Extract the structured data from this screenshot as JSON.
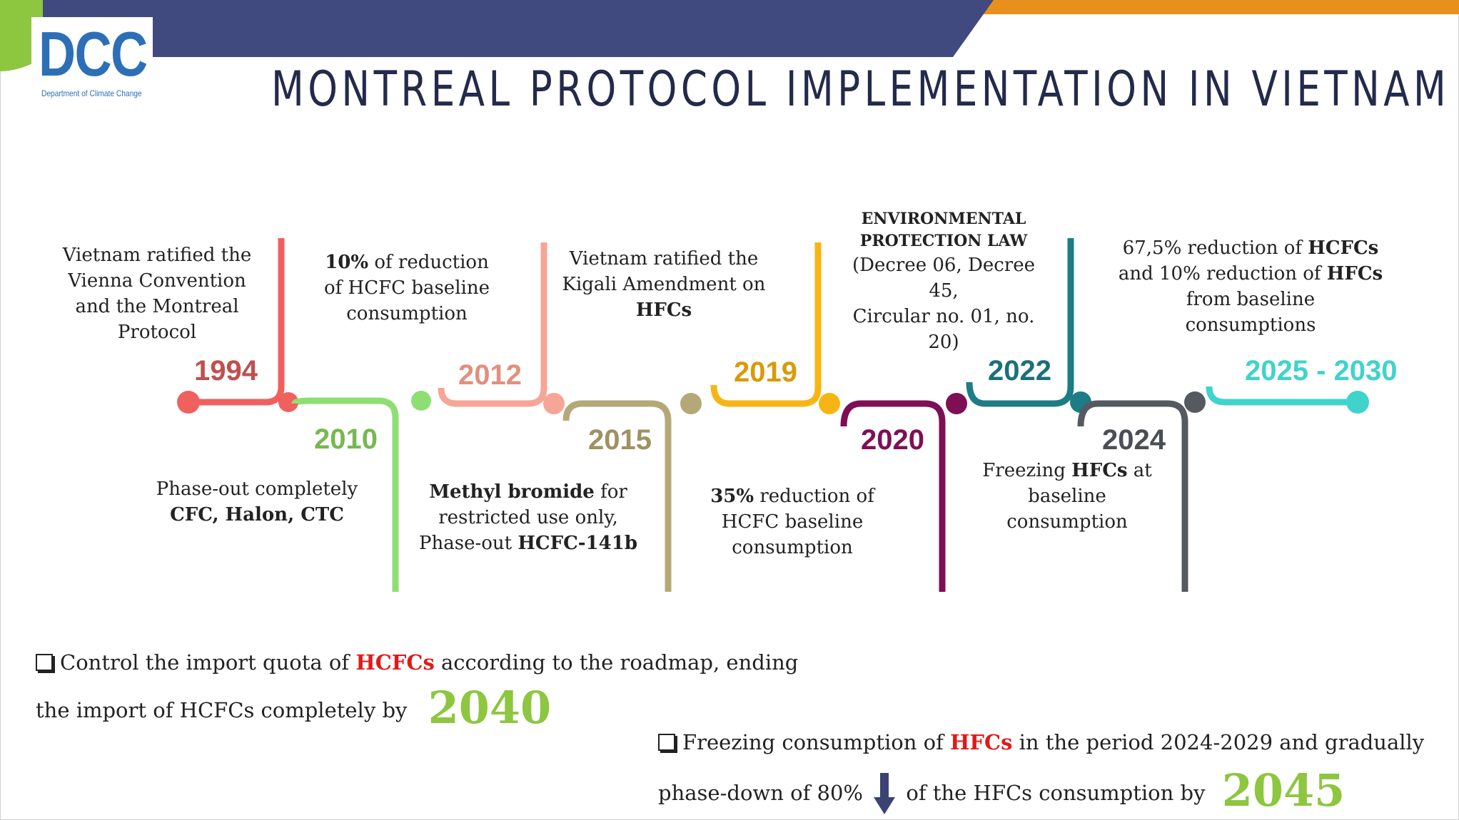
{
  "header": {
    "logo": {
      "name": "DCC",
      "subtitle": "Department of Climate Change"
    },
    "title": "MONTREAL PROTOCOL IMPLEMENTATION IN VIETNAM"
  },
  "timeline": [
    {
      "year": "1994",
      "color": "#f0605e",
      "year_color": "#c0504d",
      "lines": [
        [
          "Vietnam ratified the"
        ],
        [
          "Vienna Convention"
        ],
        [
          "and the Montreal"
        ],
        [
          "Protocol"
        ]
      ]
    },
    {
      "year": "2010",
      "color": "#8ddf73",
      "year_color": "#76b852",
      "lines": [
        [
          "Phase-out completely"
        ],
        [
          {
            "b": "CFC, Halon, CTC"
          }
        ]
      ]
    },
    {
      "year": "2012",
      "color": "#f7a596",
      "year_color": "#e0907e",
      "lines": [
        [
          {
            "b": "10%"
          },
          " of reduction"
        ],
        [
          "of HCFC baseline"
        ],
        [
          "consumption"
        ]
      ]
    },
    {
      "year": "2015",
      "color": "#b5a878",
      "year_color": "#9e9262",
      "lines": [
        [
          {
            "b": "Methyl bromide"
          },
          " for"
        ],
        [
          "restricted use only,"
        ],
        [
          "Phase-out ",
          {
            "b": "HCFC-141b"
          }
        ]
      ]
    },
    {
      "year": "2019",
      "color": "#f7b515",
      "year_color": "#d99a0a",
      "lines": [
        [
          "Vietnam ratified the"
        ],
        [
          "Kigali Amendment on"
        ],
        [
          {
            "b": "HFCs"
          }
        ]
      ]
    },
    {
      "year": "2020",
      "color": "#7e0f55",
      "year_color": "#7e0f55",
      "lines": [
        [
          {
            "b": "35%"
          },
          " reduction of"
        ],
        [
          "HCFC baseline"
        ],
        [
          "consumption"
        ]
      ]
    },
    {
      "year": "2022",
      "color": "#1c7d86",
      "year_color": "#1c6f78",
      "lines": [
        [
          {
            "b": "ENVIRONMENTAL"
          }
        ],
        [
          {
            "b": "PROTECTION LAW"
          }
        ],
        [
          "(Decree 06, Decree 45,"
        ],
        [
          "Circular no. 01, no. 20)"
        ]
      ]
    },
    {
      "year": "2024",
      "color": "#555a60",
      "year_color": "#4a4f55",
      "lines": [
        [
          "Freezing ",
          {
            "b": "HFCs"
          },
          " at"
        ],
        [
          "baseline"
        ],
        [
          "consumption"
        ]
      ]
    },
    {
      "year": "2025 - 2030",
      "color": "#3fd3cc",
      "year_color": "#3fd3cc",
      "lines": [
        [
          "67,5% reduction of ",
          {
            "b": "HCFCs"
          }
        ],
        [
          "and 10% reduction of ",
          {
            "b": "HFCs"
          }
        ],
        [
          "from baseline"
        ],
        [
          "consumptions"
        ]
      ]
    }
  ],
  "bullets": {
    "b1": {
      "pre": "Control the import quota of ",
      "hl": "HCFCs",
      "post": " according to the roadmap, ending",
      "line2": "the import of HCFCs completely by",
      "year": "2040"
    },
    "b2": {
      "pre": "Freezing consumption of ",
      "hl": "HFCs",
      "post": " in the period 2024-2029 and gradually",
      "line2a": "phase-down of 80%",
      "line2b": "of the HFCs consumption by",
      "year": "2045"
    }
  },
  "colors": {
    "navy": "#414a7e",
    "orange": "#e8901c",
    "green": "#8dc63f"
  }
}
